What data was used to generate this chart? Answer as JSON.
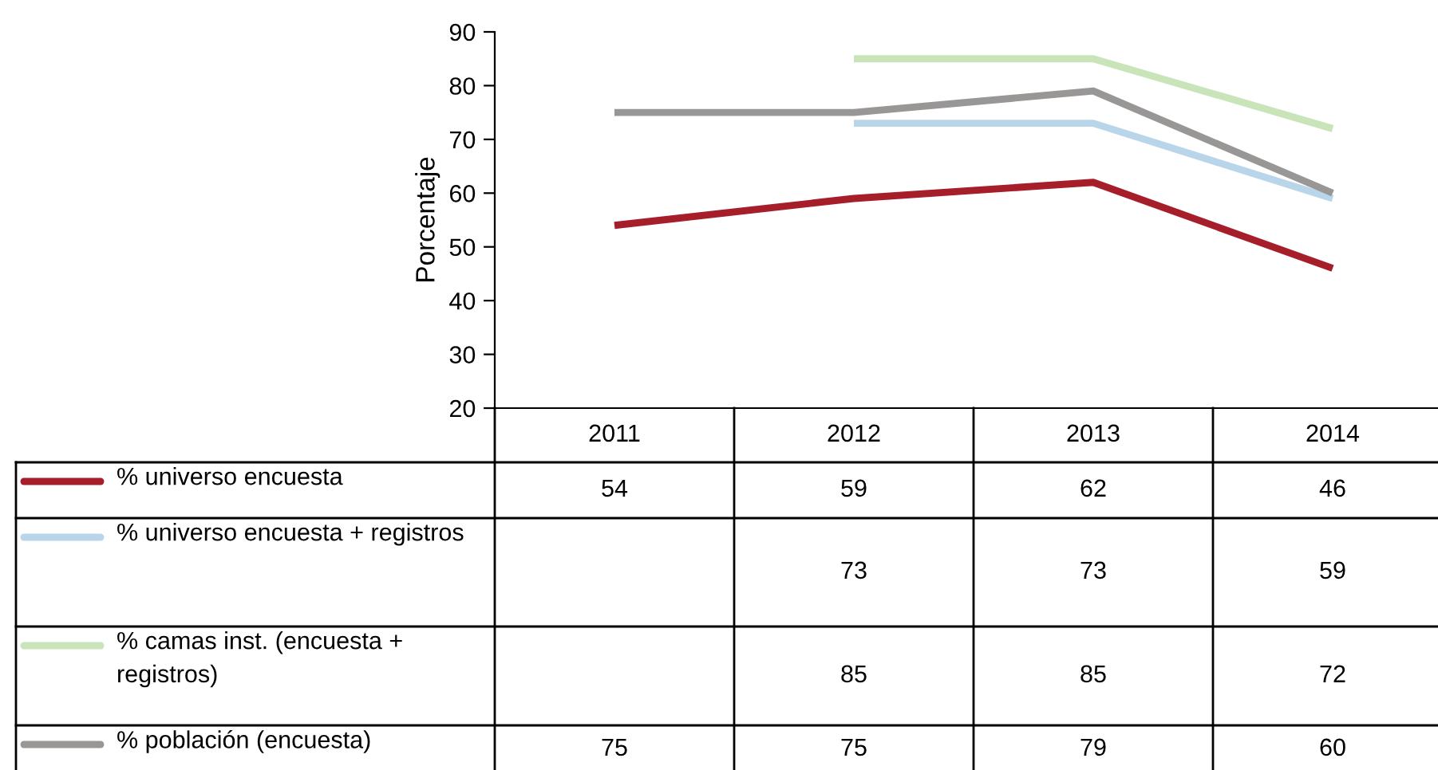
{
  "chart_data": {
    "type": "line",
    "ylabel": "Porcentaje",
    "categories": [
      "2011",
      "2012",
      "2013",
      "2014"
    ],
    "series": [
      {
        "name": "% universo encuesta",
        "color": "#a71e2b",
        "values": [
          54,
          59,
          62,
          46
        ]
      },
      {
        "name": "% universo encuesta + registros",
        "color": "#b9d5ea",
        "values": [
          null,
          73,
          73,
          59
        ]
      },
      {
        "name": "% camas inst. (encuesta + registros)",
        "color": "#c9e4b9",
        "values": [
          null,
          85,
          85,
          72
        ]
      },
      {
        "name": "% población (encuesta)",
        "color": "#999696",
        "values": [
          75,
          75,
          79,
          60
        ]
      }
    ],
    "ylim": [
      20,
      90
    ],
    "yticks": [
      20,
      30,
      40,
      50,
      60,
      70,
      80,
      90
    ],
    "grid": false,
    "legend": "bottom",
    "data_labels": true,
    "marker": "none",
    "line_style": "solid"
  }
}
